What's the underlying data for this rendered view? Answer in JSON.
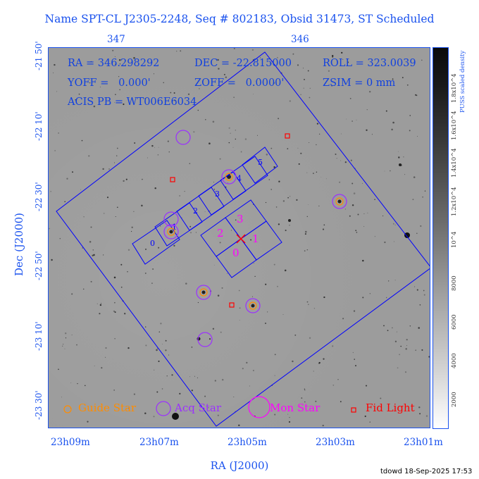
{
  "title": "Name SPT-CL J2305-2248, Seq # 802183, Obsid 31473, ST Scheduled",
  "axes": {
    "xlabel": "RA (J2000)",
    "ylabel": "Dec (J2000)",
    "x_ticks": [
      "23h09m",
      "23h07m",
      "23h05m",
      "23h03m",
      "23h01m"
    ],
    "top_ticks": [
      "347",
      "346"
    ],
    "y_ticks": [
      "-21 50'",
      "-22 10'",
      "-22 30'",
      "-22 50'",
      "-23 10'",
      "-23 30'"
    ]
  },
  "colorbar": {
    "label": "PUSS scaled density",
    "ticks": [
      "2000",
      "4000",
      "6000",
      "8000",
      "10^4",
      "1.2x10^4",
      "1.4x10^4",
      "1.6x10^4",
      "1.8x10^4"
    ]
  },
  "info": {
    "ra": "RA = 346.298292",
    "dec": "DEC = -22.815000",
    "roll": "ROLL = 323.0039",
    "yoff": "YOFF =   0.000'",
    "zoff": "ZOFF =   0.0000'",
    "zsim": "ZSIM = 0 mm",
    "acis": "ACIS PB = WT006E6034"
  },
  "chips": {
    "acis_s": [
      "0",
      "1",
      "2",
      "3",
      "4",
      "5"
    ],
    "acis_i": [
      "0",
      "1",
      "2",
      "3"
    ]
  },
  "legend": {
    "guide": "Guide Star",
    "acq": "Acq Star",
    "mon": "Mon Star",
    "fid": "Fid Light"
  },
  "colors": {
    "axis_blue": "#1a52ee",
    "guide_orange": "#ff8c00",
    "acq_purple": "#9b30ff",
    "mon_magenta": "#ff00ff",
    "fid_red": "#ff0000",
    "chip_blue": "#0000ff"
  },
  "stamp": "tdowd 18-Sep-2025 17:53"
}
